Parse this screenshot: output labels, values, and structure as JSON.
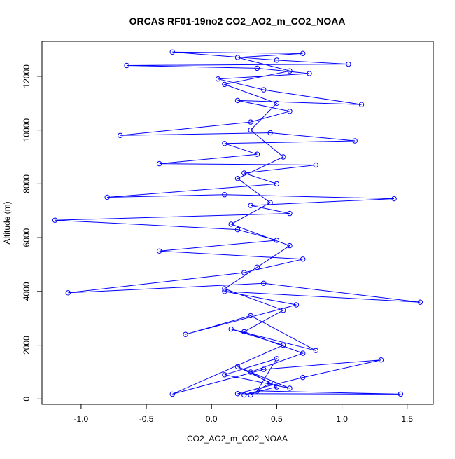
{
  "chart_data": {
    "type": "scatter",
    "title": "ORCAS RF01-19no2 CO2_AO2_m_CO2_NOAA",
    "xlabel": "CO2_AO2_m_CO2_NOAA",
    "ylabel": "Altitude (m)",
    "xlim": [
      -1.3,
      1.7
    ],
    "ylim": [
      -200,
      13300
    ],
    "xticks": [
      -1.0,
      -0.5,
      0.0,
      0.5,
      1.0,
      1.5
    ],
    "xtick_labels": [
      "-1.0",
      "-0.5",
      "0.0",
      "0.5",
      "1.0",
      "1.5"
    ],
    "yticks": [
      0,
      2000,
      4000,
      6000,
      8000,
      10000,
      12000
    ],
    "ytick_labels": [
      "0",
      "2000",
      "4000",
      "6000",
      "8000",
      "10000",
      "12000"
    ],
    "grid": false,
    "legend": "none",
    "connected": true,
    "marker": "open-circle",
    "series": [
      {
        "color": "#0000ff",
        "points": [
          [
            0.3,
            150
          ],
          [
            0.45,
            600
          ],
          [
            0.2,
            1200
          ],
          [
            0.6,
            400
          ],
          [
            0.1,
            900
          ],
          [
            0.5,
            1500
          ],
          [
            0.35,
            300
          ],
          [
            1.45,
            180
          ],
          [
            0.2,
            200
          ],
          [
            0.7,
            800
          ],
          [
            1.3,
            1450
          ],
          [
            0.4,
            1100
          ],
          [
            -0.3,
            180
          ],
          [
            0.55,
            2000
          ],
          [
            0.15,
            2600
          ],
          [
            0.8,
            1800
          ],
          [
            0.3,
            3100
          ],
          [
            -0.2,
            2400
          ],
          [
            0.65,
            3500
          ],
          [
            0.1,
            4000
          ],
          [
            1.6,
            3600
          ],
          [
            0.4,
            4300
          ],
          [
            -1.1,
            3950
          ],
          [
            0.25,
            4700
          ],
          [
            0.7,
            5200
          ],
          [
            -0.4,
            5500
          ],
          [
            0.5,
            5900
          ],
          [
            0.2,
            6300
          ],
          [
            -1.2,
            6650
          ],
          [
            0.6,
            6900
          ],
          [
            0.3,
            7200
          ],
          [
            1.4,
            7450
          ],
          [
            0.1,
            7600
          ],
          [
            -0.8,
            7500
          ],
          [
            0.5,
            8000
          ],
          [
            0.25,
            8400
          ],
          [
            0.8,
            8700
          ],
          [
            -0.4,
            8750
          ],
          [
            0.35,
            9100
          ],
          [
            0.1,
            9500
          ],
          [
            1.1,
            9600
          ],
          [
            0.45,
            9900
          ],
          [
            -0.7,
            9800
          ],
          [
            0.3,
            10300
          ],
          [
            0.6,
            10700
          ],
          [
            0.2,
            11100
          ],
          [
            1.15,
            10950
          ],
          [
            0.4,
            11500
          ],
          [
            0.05,
            11900
          ],
          [
            0.75,
            12100
          ],
          [
            0.35,
            12300
          ],
          [
            -0.65,
            12400
          ],
          [
            1.05,
            12450
          ],
          [
            0.5,
            12600
          ],
          [
            -0.3,
            12900
          ],
          [
            0.7,
            12850
          ],
          [
            0.2,
            12700
          ],
          [
            0.6,
            12200
          ],
          [
            0.1,
            11700
          ],
          [
            0.5,
            11000
          ],
          [
            0.3,
            10000
          ],
          [
            0.55,
            9000
          ],
          [
            0.2,
            8200
          ],
          [
            0.45,
            7300
          ],
          [
            0.15,
            6500
          ],
          [
            0.6,
            5700
          ],
          [
            0.35,
            4900
          ],
          [
            0.1,
            4100
          ],
          [
            0.55,
            3300
          ],
          [
            0.25,
            2500
          ],
          [
            0.7,
            1700
          ],
          [
            0.3,
            1000
          ],
          [
            0.5,
            450
          ],
          [
            0.25,
            150
          ]
        ]
      }
    ]
  }
}
